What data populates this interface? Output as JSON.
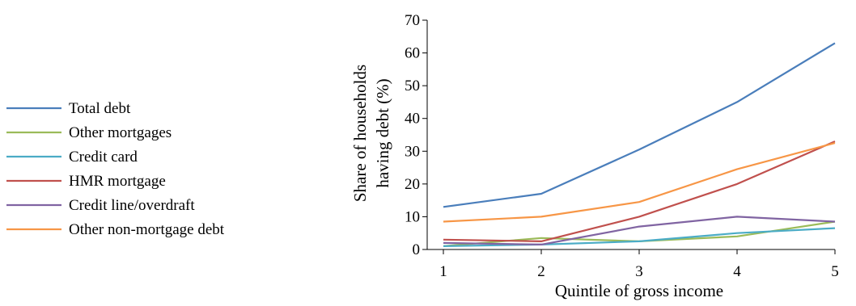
{
  "chart_data": {
    "type": "line",
    "title": "",
    "xlabel": "Quintile of gross income",
    "ylabel": [
      "Share of households",
      "having debt (%)"
    ],
    "x": [
      1,
      2,
      3,
      4,
      5
    ],
    "x_tick_labels": [
      "1",
      "2",
      "3",
      "4",
      "5"
    ],
    "ylim": [
      0,
      70
    ],
    "y_ticks": [
      0,
      10,
      20,
      30,
      40,
      50,
      60,
      70
    ],
    "grid": false,
    "legend_position": "left",
    "series": [
      {
        "name": "Total debt",
        "color": "#4a7ebb",
        "values": [
          13,
          17,
          30.5,
          45,
          63
        ]
      },
      {
        "name": "Other mortgages",
        "color": "#9bbb59",
        "values": [
          1,
          3.5,
          2.5,
          4,
          8.5
        ]
      },
      {
        "name": "Credit card",
        "color": "#4bacc6",
        "values": [
          1,
          1.5,
          2.5,
          5,
          6.5
        ]
      },
      {
        "name": "HMR mortgage",
        "color": "#c0504d",
        "values": [
          3,
          2.5,
          10,
          20,
          33
        ]
      },
      {
        "name": "Credit line/overdraft",
        "color": "#8064a2",
        "values": [
          2,
          1.5,
          7,
          10,
          8.5
        ]
      },
      {
        "name": "Other non-mortgage debt",
        "color": "#f79646",
        "values": [
          8.5,
          10,
          14.5,
          24.5,
          32.5
        ]
      }
    ]
  }
}
